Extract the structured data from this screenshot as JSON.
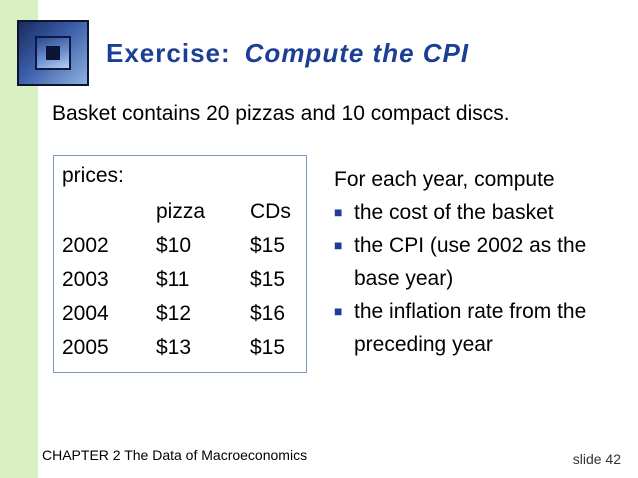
{
  "title": {
    "main": "Exercise:",
    "sub": "Compute the CPI"
  },
  "basket_text": "Basket contains 20 pizzas and 10 compact discs.",
  "prices": {
    "label": "prices:",
    "headers": [
      "pizza",
      "CDs"
    ],
    "rows": [
      {
        "year": "2002",
        "pizza": "$10",
        "cds": "$15"
      },
      {
        "year": "2003",
        "pizza": "$11",
        "cds": "$15"
      },
      {
        "year": "2004",
        "pizza": "$12",
        "cds": "$16"
      },
      {
        "year": "2005",
        "pizza": "$13",
        "cds": "$15"
      }
    ]
  },
  "instructions": {
    "heading": "For each year, compute",
    "bullets": [
      "the cost of the basket",
      "the CPI (use 2002 as the base year)",
      "the inflation rate from the preceding year"
    ]
  },
  "footer": {
    "chapter": "CHAPTER 2   The Data of Macroeconomics",
    "slide": "slide 42"
  },
  "colors": {
    "title": "#1c3f96",
    "left_bar": "#d9f0c2",
    "box_border": "#7b96c8"
  }
}
